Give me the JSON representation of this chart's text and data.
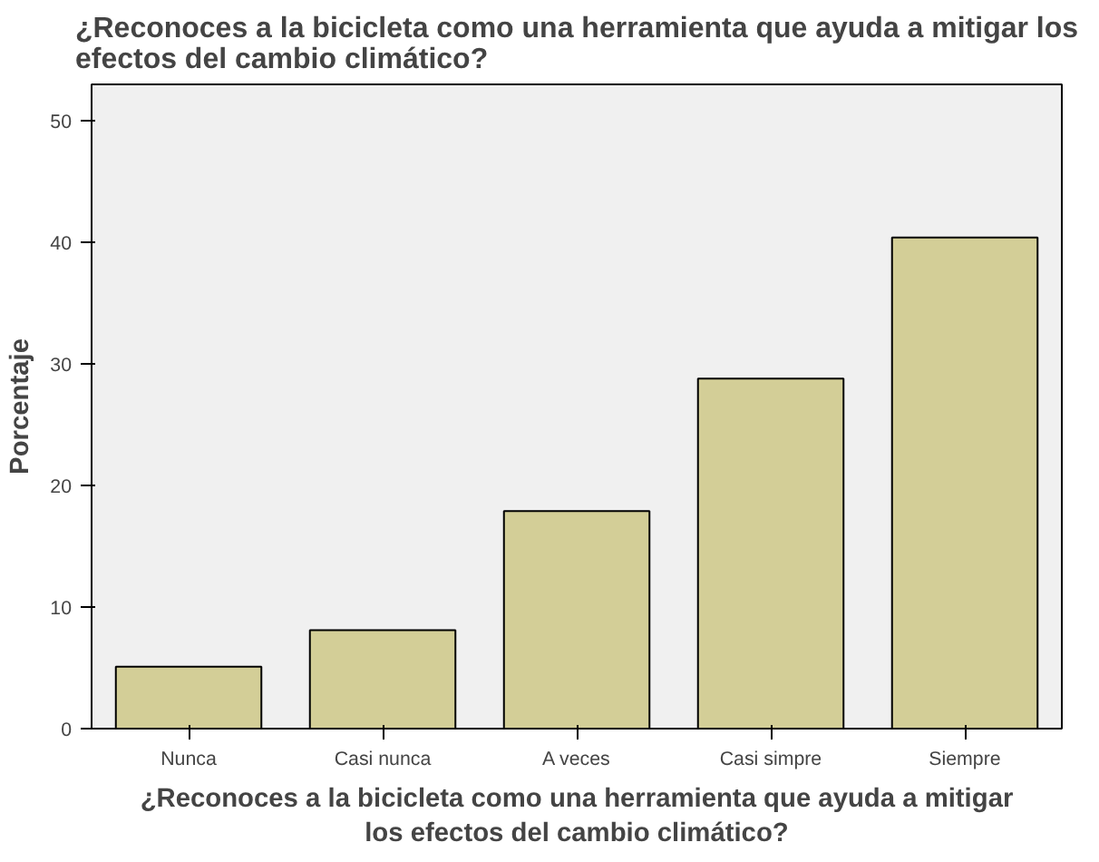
{
  "chart_data": {
    "type": "bar",
    "title": "¿Reconoces a la bicicleta como una herramienta que ayuda a mitigar los efectos del cambio climático?",
    "xlabel": "¿Reconoces a la bicicleta como una herramienta que ayuda a mitigar los efectos del cambio climático?",
    "ylabel": "Porcentaje",
    "categories": [
      "Nunca",
      "Casi nunca",
      "A veces",
      "Casi simpre",
      "Siempre"
    ],
    "values": [
      5.1,
      8.1,
      17.9,
      28.8,
      40.4
    ],
    "color": "#d3ce97",
    "ylim": [
      0,
      53
    ],
    "yticks": [
      0,
      10,
      20,
      30,
      40,
      50
    ],
    "grid": false
  }
}
